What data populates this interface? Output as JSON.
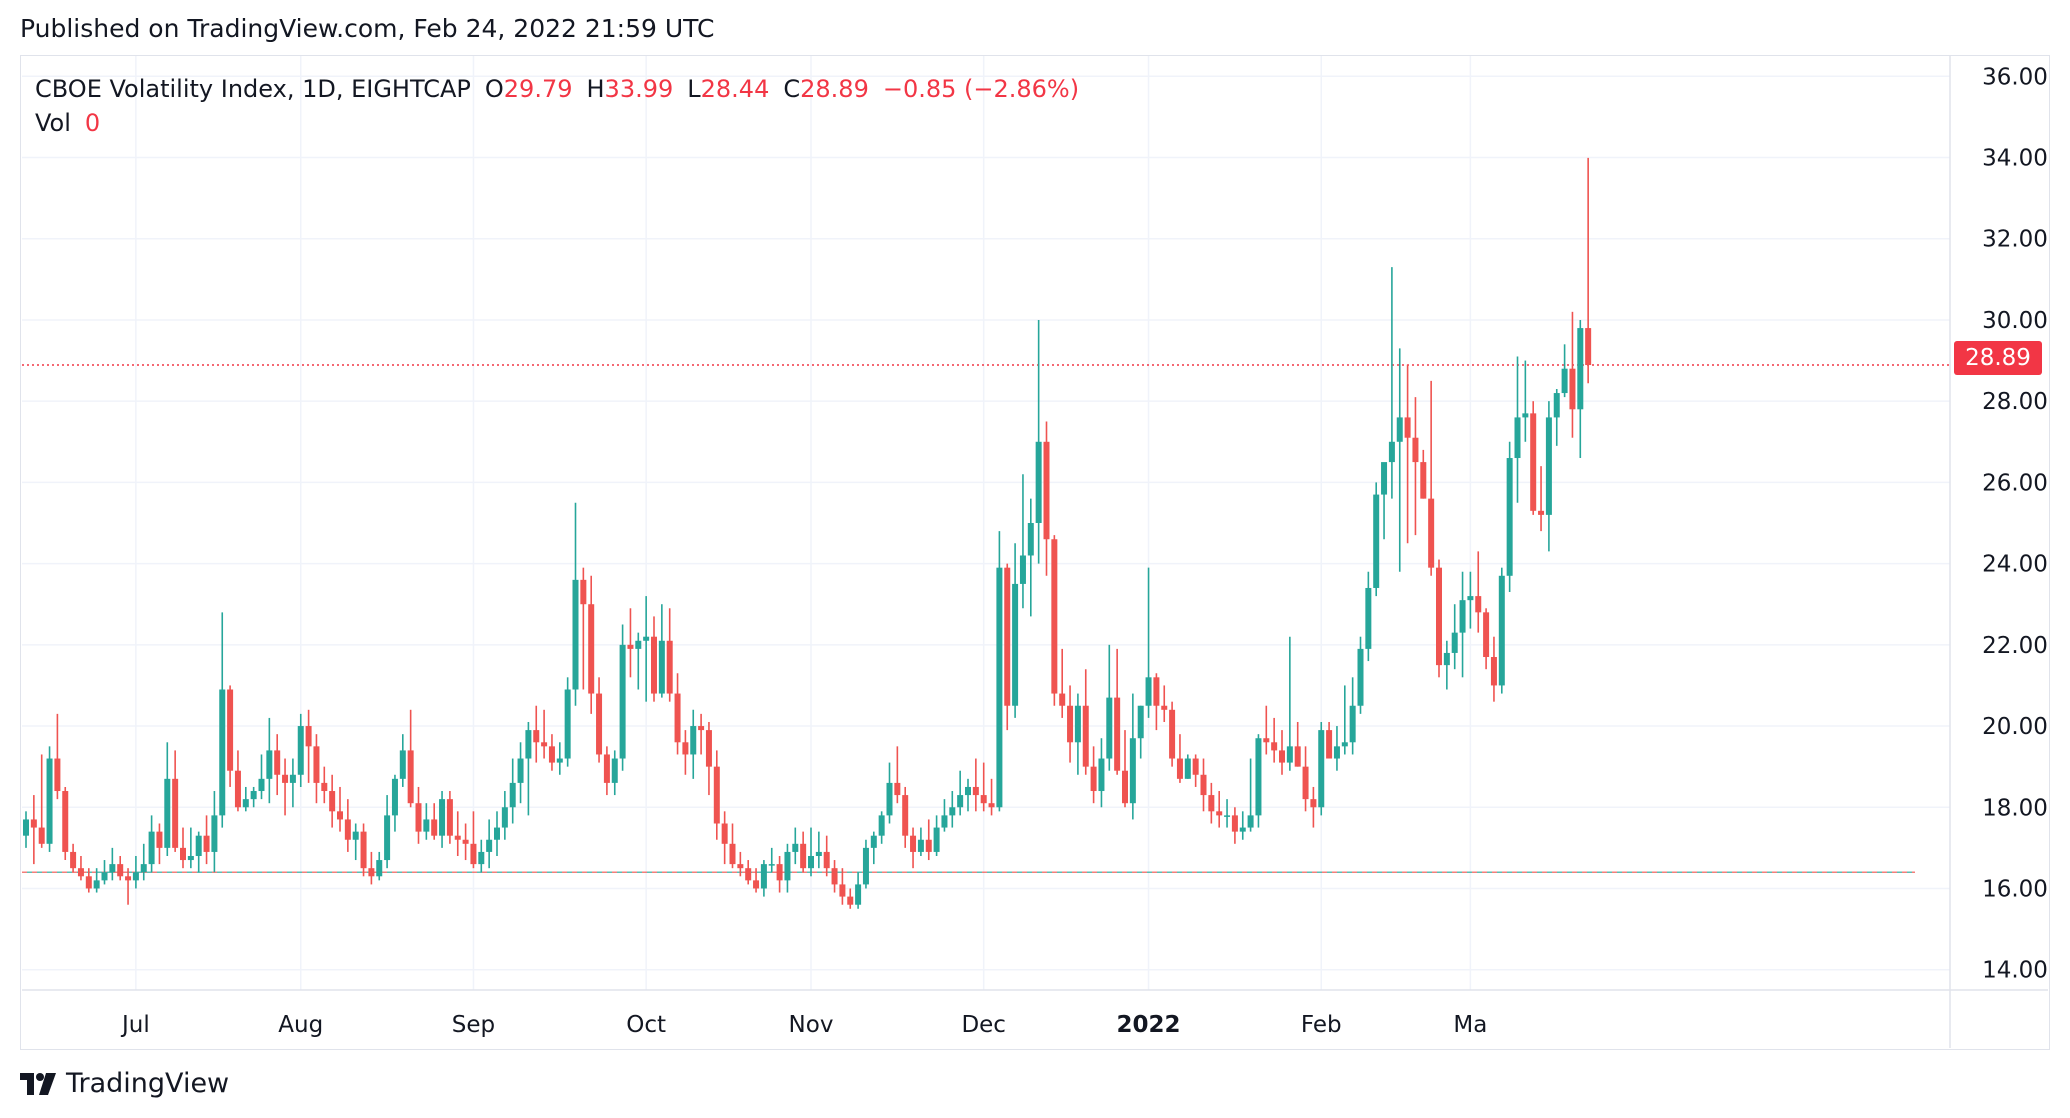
{
  "header": {
    "published": "Published on TradingView.com, Feb 24, 2022 21:59 UTC"
  },
  "legend": {
    "symbol": "CBOE Volatility Index, 1D, EIGHTCAP",
    "o_label": "O",
    "o_value": "29.79",
    "h_label": "H",
    "h_value": "33.99",
    "l_label": "L",
    "l_value": "28.44",
    "c_label": "C",
    "c_value": "28.89",
    "change": "−0.85 (−2.86%)",
    "vol_label": "Vol",
    "vol_value": "0"
  },
  "last_price_label": "28.89",
  "footer": {
    "brand": "TradingView"
  },
  "colors": {
    "up": "#26a69a",
    "down": "#ef5350",
    "grid": "#f0f3fa",
    "text": "#131722",
    "accent": "#f23645"
  },
  "chart_data": {
    "type": "candlestick",
    "title": "CBOE Volatility Index, 1D, EIGHTCAP",
    "ylim": [
      13.5,
      36.5
    ],
    "y_ticks": [
      "14.00",
      "16.00",
      "18.00",
      "20.00",
      "22.00",
      "24.00",
      "26.00",
      "28.00",
      "30.00",
      "32.00",
      "34.00",
      "36.00"
    ],
    "x_ticks": [
      {
        "label": "Jul",
        "index": 14
      },
      {
        "label": "Aug",
        "index": 35
      },
      {
        "label": "Sep",
        "index": 57
      },
      {
        "label": "Oct",
        "index": 79
      },
      {
        "label": "Nov",
        "index": 100
      },
      {
        "label": "Dec",
        "index": 122
      },
      {
        "label": "2022",
        "index": 143,
        "bold": true
      },
      {
        "label": "Feb",
        "index": 165
      },
      {
        "label": "Ma",
        "index": 184
      }
    ],
    "last_close": 28.89,
    "dashed_level": 16.4,
    "candles": [
      [
        17.3,
        17.9,
        17.0,
        17.7
      ],
      [
        17.7,
        18.3,
        16.6,
        17.5
      ],
      [
        17.5,
        19.3,
        17.0,
        17.1
      ],
      [
        17.1,
        19.5,
        16.9,
        19.2
      ],
      [
        19.2,
        20.3,
        18.2,
        18.4
      ],
      [
        18.4,
        18.5,
        16.7,
        16.9
      ],
      [
        16.9,
        17.1,
        16.4,
        16.5
      ],
      [
        16.5,
        16.8,
        16.2,
        16.3
      ],
      [
        16.3,
        16.5,
        15.9,
        16.0
      ],
      [
        16.0,
        16.5,
        15.9,
        16.2
      ],
      [
        16.2,
        16.7,
        16.1,
        16.4
      ],
      [
        16.4,
        17.0,
        16.2,
        16.6
      ],
      [
        16.6,
        16.8,
        16.2,
        16.3
      ],
      [
        16.3,
        16.5,
        15.6,
        16.2
      ],
      [
        16.2,
        16.8,
        16.0,
        16.4
      ],
      [
        16.4,
        17.1,
        16.2,
        16.6
      ],
      [
        16.6,
        17.8,
        16.4,
        17.4
      ],
      [
        17.4,
        17.6,
        16.6,
        17.0
      ],
      [
        17.0,
        19.6,
        16.8,
        18.7
      ],
      [
        18.7,
        19.4,
        16.9,
        17.0
      ],
      [
        17.0,
        17.5,
        16.5,
        16.7
      ],
      [
        16.7,
        17.5,
        16.5,
        16.8
      ],
      [
        16.8,
        17.4,
        16.4,
        17.3
      ],
      [
        17.3,
        17.8,
        16.6,
        16.9
      ],
      [
        16.9,
        18.4,
        16.4,
        17.8
      ],
      [
        17.8,
        22.8,
        17.5,
        20.9
      ],
      [
        20.9,
        21.0,
        18.5,
        18.9
      ],
      [
        18.9,
        19.4,
        17.9,
        18.0
      ],
      [
        18.0,
        18.5,
        17.9,
        18.2
      ],
      [
        18.2,
        18.5,
        18.0,
        18.4
      ],
      [
        18.4,
        19.3,
        18.2,
        18.7
      ],
      [
        18.7,
        20.2,
        18.1,
        19.4
      ],
      [
        19.4,
        19.8,
        18.3,
        18.8
      ],
      [
        18.8,
        19.2,
        17.8,
        18.6
      ],
      [
        18.6,
        19.2,
        18.0,
        18.8
      ],
      [
        18.8,
        20.3,
        18.5,
        20.0
      ],
      [
        20.0,
        20.4,
        18.6,
        19.5
      ],
      [
        19.5,
        19.8,
        18.1,
        18.6
      ],
      [
        18.6,
        19.0,
        18.1,
        18.4
      ],
      [
        18.4,
        18.8,
        17.5,
        17.9
      ],
      [
        17.9,
        18.5,
        17.4,
        17.7
      ],
      [
        17.7,
        18.2,
        16.9,
        17.2
      ],
      [
        17.2,
        17.6,
        16.7,
        17.4
      ],
      [
        17.4,
        17.6,
        16.3,
        16.5
      ],
      [
        16.5,
        16.9,
        16.1,
        16.3
      ],
      [
        16.3,
        16.9,
        16.2,
        16.7
      ],
      [
        16.7,
        18.3,
        16.5,
        17.8
      ],
      [
        17.8,
        18.8,
        17.4,
        18.7
      ],
      [
        18.7,
        19.8,
        18.5,
        19.4
      ],
      [
        19.4,
        20.4,
        18.0,
        18.1
      ],
      [
        18.1,
        18.5,
        17.1,
        17.4
      ],
      [
        17.4,
        18.1,
        17.2,
        17.7
      ],
      [
        17.7,
        18.1,
        17.2,
        17.3
      ],
      [
        17.3,
        18.4,
        17.0,
        18.2
      ],
      [
        18.2,
        18.4,
        17.1,
        17.3
      ],
      [
        17.3,
        17.9,
        16.8,
        17.2
      ],
      [
        17.2,
        17.6,
        16.7,
        17.1
      ],
      [
        17.1,
        17.9,
        16.5,
        16.6
      ],
      [
        16.6,
        17.2,
        16.4,
        16.9
      ],
      [
        16.9,
        17.7,
        16.5,
        17.2
      ],
      [
        17.2,
        17.9,
        16.8,
        17.5
      ],
      [
        17.5,
        18.4,
        17.2,
        18.0
      ],
      [
        18.0,
        19.2,
        17.6,
        18.6
      ],
      [
        18.6,
        19.6,
        18.1,
        19.2
      ],
      [
        19.2,
        20.1,
        17.8,
        19.9
      ],
      [
        19.9,
        20.5,
        19.1,
        19.6
      ],
      [
        19.6,
        20.4,
        19.2,
        19.5
      ],
      [
        19.5,
        19.8,
        18.9,
        19.1
      ],
      [
        19.1,
        19.6,
        18.8,
        19.2
      ],
      [
        19.2,
        21.2,
        19.0,
        20.9
      ],
      [
        20.9,
        25.5,
        20.5,
        23.6
      ],
      [
        23.6,
        23.9,
        20.9,
        23.0
      ],
      [
        23.0,
        23.7,
        20.3,
        20.8
      ],
      [
        20.8,
        21.2,
        19.1,
        19.3
      ],
      [
        19.3,
        19.5,
        18.3,
        18.6
      ],
      [
        18.6,
        19.4,
        18.3,
        19.2
      ],
      [
        19.2,
        22.5,
        18.9,
        22.0
      ],
      [
        22.0,
        22.9,
        21.2,
        21.9
      ],
      [
        21.9,
        22.3,
        20.9,
        22.1
      ],
      [
        22.1,
        23.2,
        20.6,
        22.2
      ],
      [
        22.2,
        22.7,
        20.6,
        20.8
      ],
      [
        20.8,
        23.0,
        20.7,
        22.1
      ],
      [
        22.1,
        22.9,
        20.6,
        20.8
      ],
      [
        20.8,
        21.3,
        19.3,
        19.6
      ],
      [
        19.6,
        19.9,
        18.8,
        19.3
      ],
      [
        19.3,
        20.4,
        18.7,
        20.0
      ],
      [
        20.0,
        20.3,
        19.3,
        19.9
      ],
      [
        19.9,
        20.1,
        18.3,
        19.0
      ],
      [
        19.0,
        19.4,
        17.2,
        17.6
      ],
      [
        17.6,
        17.9,
        16.6,
        17.1
      ],
      [
        17.1,
        17.6,
        16.5,
        16.6
      ],
      [
        16.6,
        16.9,
        16.3,
        16.5
      ],
      [
        16.5,
        16.7,
        16.1,
        16.2
      ],
      [
        16.2,
        16.5,
        15.9,
        16.0
      ],
      [
        16.0,
        16.7,
        15.8,
        16.6
      ],
      [
        16.6,
        17.0,
        16.4,
        16.6
      ],
      [
        16.6,
        16.8,
        15.9,
        16.2
      ],
      [
        16.2,
        17.1,
        15.9,
        16.9
      ],
      [
        16.9,
        17.5,
        16.6,
        17.1
      ],
      [
        17.1,
        17.4,
        16.4,
        16.5
      ],
      [
        16.5,
        17.5,
        16.3,
        16.8
      ],
      [
        16.8,
        17.4,
        16.5,
        16.9
      ],
      [
        16.9,
        17.3,
        16.3,
        16.5
      ],
      [
        16.5,
        16.7,
        15.9,
        16.1
      ],
      [
        16.1,
        16.5,
        15.6,
        15.8
      ],
      [
        15.8,
        16.0,
        15.5,
        15.6
      ],
      [
        15.6,
        16.4,
        15.5,
        16.1
      ],
      [
        16.1,
        17.2,
        16.0,
        17.0
      ],
      [
        17.0,
        17.4,
        16.6,
        17.3
      ],
      [
        17.3,
        17.9,
        17.1,
        17.8
      ],
      [
        17.8,
        19.1,
        17.6,
        18.6
      ],
      [
        18.6,
        19.5,
        18.1,
        18.3
      ],
      [
        18.3,
        18.5,
        17.0,
        17.3
      ],
      [
        17.3,
        17.5,
        16.5,
        16.9
      ],
      [
        16.9,
        17.5,
        16.8,
        17.2
      ],
      [
        17.2,
        17.7,
        16.7,
        16.9
      ],
      [
        16.9,
        17.8,
        16.8,
        17.5
      ],
      [
        17.5,
        18.2,
        17.4,
        17.8
      ],
      [
        17.8,
        18.4,
        17.5,
        18.0
      ],
      [
        18.0,
        18.9,
        17.8,
        18.3
      ],
      [
        18.3,
        18.7,
        17.9,
        18.5
      ],
      [
        18.5,
        19.2,
        17.9,
        18.3
      ],
      [
        18.3,
        19.1,
        17.9,
        18.1
      ],
      [
        18.1,
        18.7,
        17.8,
        18.0
      ],
      [
        18.0,
        24.8,
        17.9,
        23.9
      ],
      [
        23.9,
        24.0,
        19.9,
        20.5
      ],
      [
        20.5,
        24.5,
        20.2,
        23.5
      ],
      [
        23.5,
        26.2,
        22.9,
        24.2
      ],
      [
        24.2,
        25.6,
        22.7,
        25.0
      ],
      [
        25.0,
        30.0,
        24.0,
        27.0
      ],
      [
        27.0,
        27.5,
        23.7,
        24.6
      ],
      [
        24.6,
        24.7,
        20.5,
        20.8
      ],
      [
        20.8,
        21.9,
        20.2,
        20.5
      ],
      [
        20.5,
        21.0,
        19.1,
        19.6
      ],
      [
        19.6,
        20.8,
        18.8,
        20.5
      ],
      [
        20.5,
        21.4,
        18.8,
        19.0
      ],
      [
        19.0,
        19.5,
        18.1,
        18.4
      ],
      [
        18.4,
        19.7,
        18.0,
        19.2
      ],
      [
        19.2,
        22.0,
        18.9,
        20.7
      ],
      [
        20.7,
        21.9,
        18.8,
        18.9
      ],
      [
        18.9,
        19.9,
        18.0,
        18.1
      ],
      [
        18.1,
        20.8,
        17.7,
        19.7
      ],
      [
        19.7,
        20.5,
        19.2,
        20.5
      ],
      [
        20.5,
        23.9,
        20.2,
        21.2
      ],
      [
        21.2,
        21.3,
        19.9,
        20.5
      ],
      [
        20.5,
        21.0,
        20.1,
        20.4
      ],
      [
        20.4,
        20.6,
        19.0,
        19.2
      ],
      [
        19.2,
        19.8,
        18.6,
        18.7
      ],
      [
        18.7,
        19.3,
        18.7,
        19.2
      ],
      [
        19.2,
        19.3,
        18.5,
        18.8
      ],
      [
        18.8,
        19.2,
        17.9,
        18.3
      ],
      [
        18.3,
        18.6,
        17.6,
        17.9
      ],
      [
        17.9,
        18.4,
        17.5,
        17.8
      ],
      [
        17.8,
        18.2,
        17.5,
        17.8
      ],
      [
        17.8,
        18.0,
        17.1,
        17.4
      ],
      [
        17.4,
        17.9,
        17.2,
        17.5
      ],
      [
        17.5,
        19.2,
        17.4,
        17.8
      ],
      [
        17.8,
        19.8,
        17.5,
        19.7
      ],
      [
        19.7,
        20.5,
        19.3,
        19.6
      ],
      [
        19.6,
        20.2,
        19.1,
        19.4
      ],
      [
        19.4,
        19.9,
        18.8,
        19.1
      ],
      [
        19.1,
        22.2,
        18.9,
        19.5
      ],
      [
        19.5,
        20.1,
        19.0,
        19.0
      ],
      [
        19.0,
        19.5,
        17.9,
        18.2
      ],
      [
        18.2,
        18.5,
        17.5,
        18.0
      ],
      [
        18.0,
        20.1,
        17.8,
        19.9
      ],
      [
        19.9,
        20.1,
        19.3,
        19.2
      ],
      [
        19.2,
        20.0,
        18.9,
        19.5
      ],
      [
        19.5,
        21.0,
        19.3,
        19.6
      ],
      [
        19.6,
        21.2,
        19.3,
        20.5
      ],
      [
        20.5,
        22.2,
        20.3,
        21.9
      ],
      [
        21.9,
        23.8,
        21.6,
        23.4
      ],
      [
        23.4,
        26.0,
        23.2,
        25.7
      ],
      [
        25.7,
        26.4,
        24.6,
        26.5
      ],
      [
        26.5,
        31.3,
        25.6,
        27.0
      ],
      [
        27.0,
        29.3,
        23.8,
        27.6
      ],
      [
        27.6,
        28.9,
        24.5,
        27.1
      ],
      [
        27.1,
        28.1,
        24.7,
        26.5
      ],
      [
        26.5,
        26.8,
        25.6,
        25.6
      ],
      [
        25.6,
        28.5,
        23.7,
        23.9
      ],
      [
        23.9,
        24.1,
        21.2,
        21.5
      ],
      [
        21.5,
        22.1,
        20.9,
        21.8
      ],
      [
        21.8,
        23.0,
        21.4,
        22.3
      ],
      [
        22.3,
        23.8,
        21.2,
        23.1
      ],
      [
        23.1,
        23.8,
        22.4,
        23.2
      ],
      [
        23.2,
        24.3,
        22.3,
        22.8
      ],
      [
        22.8,
        22.9,
        21.4,
        21.7
      ],
      [
        21.7,
        22.2,
        20.6,
        21.0
      ],
      [
        21.0,
        23.9,
        20.8,
        23.7
      ],
      [
        23.7,
        27.0,
        23.3,
        26.6
      ],
      [
        26.6,
        29.1,
        25.5,
        27.6
      ],
      [
        27.6,
        29.0,
        27.0,
        27.7
      ],
      [
        27.7,
        28.0,
        25.2,
        25.3
      ],
      [
        25.3,
        26.4,
        24.8,
        25.2
      ],
      [
        25.2,
        28.0,
        24.3,
        27.6
      ],
      [
        27.6,
        28.3,
        26.9,
        28.2
      ],
      [
        28.2,
        29.4,
        28.1,
        28.8
      ],
      [
        28.8,
        30.2,
        27.1,
        27.8
      ],
      [
        27.8,
        30.0,
        26.6,
        29.8
      ],
      [
        29.8,
        33.99,
        28.44,
        28.89
      ]
    ]
  }
}
